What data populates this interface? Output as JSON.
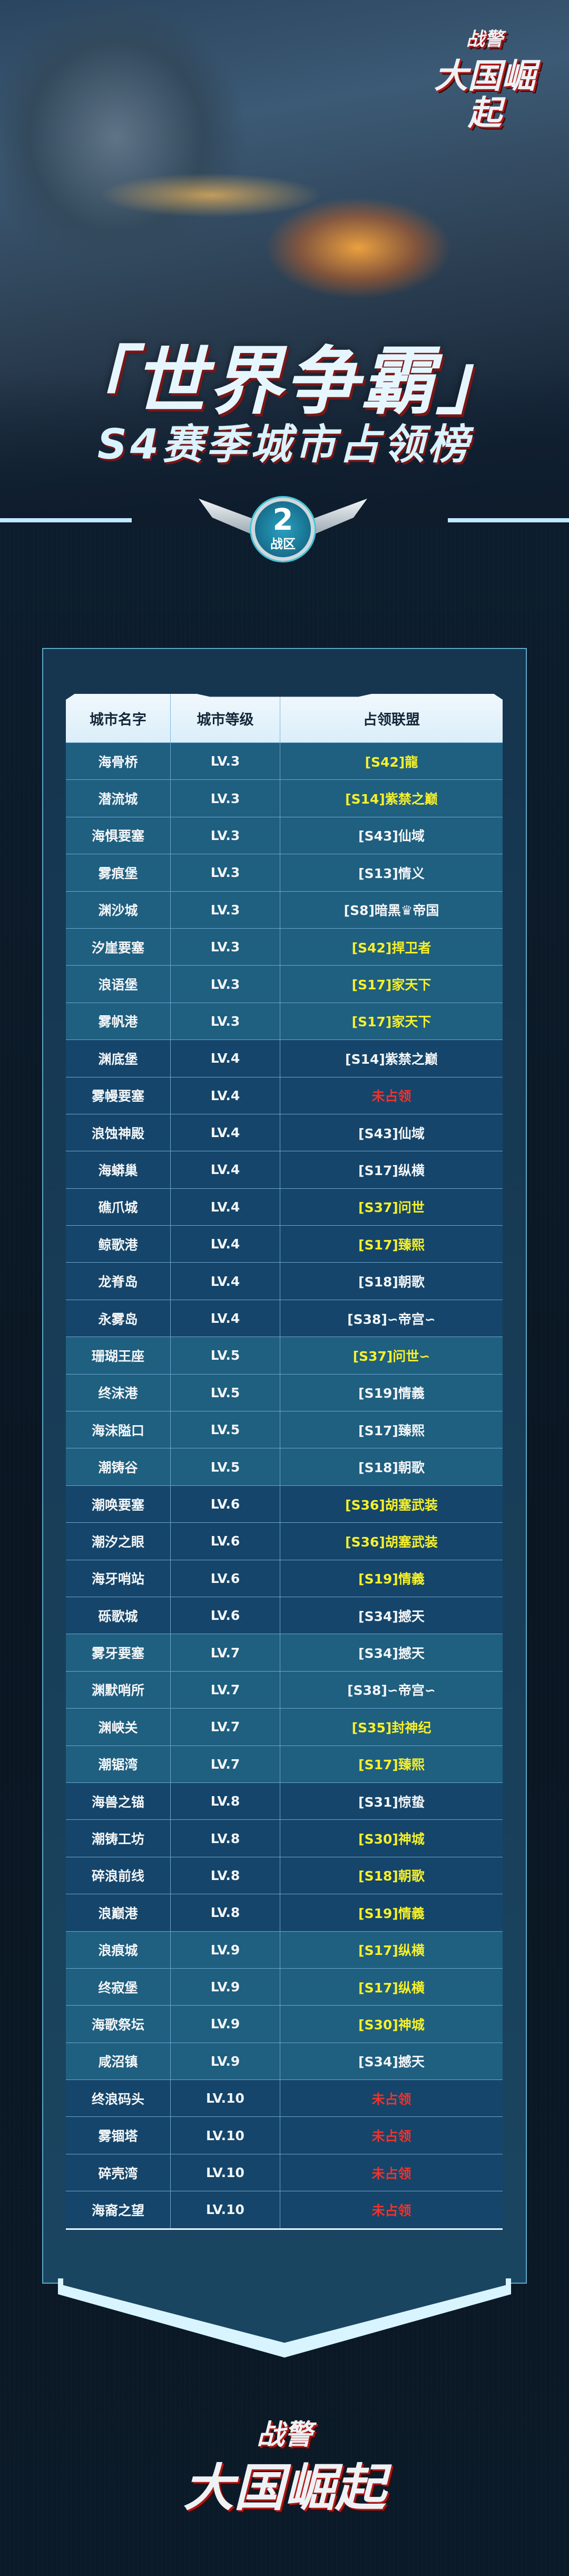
{
  "header": {
    "logo_line1": "战警",
    "logo_line2": "大国崛起",
    "title": "「世界争霸」",
    "subtitle": "S4赛季城市占领榜",
    "zone_number": "2",
    "zone_label": "战区"
  },
  "table": {
    "columns": [
      "城市名字",
      "城市等级",
      "占领联盟"
    ],
    "colors": {
      "w": "#f3f6f8",
      "y": "#f6f02a",
      "r": "#f0322c"
    },
    "rows": [
      {
        "city": "海骨桥",
        "level": "LV.3",
        "alliance": "[S42]龍",
        "color": "y"
      },
      {
        "city": "潜流城",
        "level": "LV.3",
        "alliance": "[S14]紫禁之巅",
        "color": "y"
      },
      {
        "city": "海惧要塞",
        "level": "LV.3",
        "alliance": "[S43]仙域",
        "color": "w"
      },
      {
        "city": "雾痕堡",
        "level": "LV.3",
        "alliance": "[S13]情义",
        "color": "w"
      },
      {
        "city": "渊沙城",
        "level": "LV.3",
        "alliance": "[S8]暗黑♛帝国",
        "color": "w"
      },
      {
        "city": "汐崖要塞",
        "level": "LV.3",
        "alliance": "[S42]捍卫者",
        "color": "y"
      },
      {
        "city": "浪语堡",
        "level": "LV.3",
        "alliance": "[S17]家天下",
        "color": "y"
      },
      {
        "city": "雾帆港",
        "level": "LV.3",
        "alliance": "[S17]家天下",
        "color": "y"
      },
      {
        "city": "渊底堡",
        "level": "LV.4",
        "alliance": "[S14]紫禁之巅",
        "color": "w"
      },
      {
        "city": "雾幔要塞",
        "level": "LV.4",
        "alliance": "未占领",
        "color": "r"
      },
      {
        "city": "浪蚀神殿",
        "level": "LV.4",
        "alliance": "[S43]仙域",
        "color": "w"
      },
      {
        "city": "海蟒巢",
        "level": "LV.4",
        "alliance": "[S17]纵横",
        "color": "w"
      },
      {
        "city": "礁爪城",
        "level": "LV.4",
        "alliance": "[S37]问世",
        "color": "y"
      },
      {
        "city": "鲸歌港",
        "level": "LV.4",
        "alliance": "[S17]臻熙",
        "color": "y"
      },
      {
        "city": "龙脊岛",
        "level": "LV.4",
        "alliance": "[S18]朝歌",
        "color": "w"
      },
      {
        "city": "永雾岛",
        "level": "LV.4",
        "alliance": "[S38]∽帝宫∽",
        "color": "w"
      },
      {
        "city": "珊瑚王座",
        "level": "LV.5",
        "alliance": "[S37]问世∽",
        "color": "y"
      },
      {
        "city": "终沫港",
        "level": "LV.5",
        "alliance": "[S19]情義",
        "color": "w"
      },
      {
        "city": "海沫隘口",
        "level": "LV.5",
        "alliance": "[S17]臻熙",
        "color": "w"
      },
      {
        "city": "潮铸谷",
        "level": "LV.5",
        "alliance": "[S18]朝歌",
        "color": "w"
      },
      {
        "city": "潮唤要塞",
        "level": "LV.6",
        "alliance": "[S36]胡塞武装",
        "color": "y"
      },
      {
        "city": "潮汐之眼",
        "level": "LV.6",
        "alliance": "[S36]胡塞武装",
        "color": "y"
      },
      {
        "city": "海牙哨站",
        "level": "LV.6",
        "alliance": "[S19]情義",
        "color": "y"
      },
      {
        "city": "砾歌城",
        "level": "LV.6",
        "alliance": "[S34]撼天",
        "color": "w"
      },
      {
        "city": "雾牙要塞",
        "level": "LV.7",
        "alliance": "[S34]撼天",
        "color": "w"
      },
      {
        "city": "渊默哨所",
        "level": "LV.7",
        "alliance": "[S38]∽帝宫∽",
        "color": "w"
      },
      {
        "city": "渊峡关",
        "level": "LV.7",
        "alliance": "[S35]封神纪",
        "color": "y"
      },
      {
        "city": "潮锯湾",
        "level": "LV.7",
        "alliance": "[S17]臻熙",
        "color": "y"
      },
      {
        "city": "海兽之锚",
        "level": "LV.8",
        "alliance": "[S31]惊蛰",
        "color": "w"
      },
      {
        "city": "潮铸工坊",
        "level": "LV.8",
        "alliance": "[S30]神城",
        "color": "y"
      },
      {
        "city": "碎浪前线",
        "level": "LV.8",
        "alliance": "[S18]朝歌",
        "color": "y"
      },
      {
        "city": "浪巅港",
        "level": "LV.8",
        "alliance": "[S19]情義",
        "color": "y"
      },
      {
        "city": "浪痕城",
        "level": "LV.9",
        "alliance": "[S17]纵横",
        "color": "y"
      },
      {
        "city": "终寂堡",
        "level": "LV.9",
        "alliance": "[S17]纵横",
        "color": "y"
      },
      {
        "city": "海歌祭坛",
        "level": "LV.9",
        "alliance": "[S30]神城",
        "color": "y"
      },
      {
        "city": "咸沼镇",
        "level": "LV.9",
        "alliance": "[S34]撼天",
        "color": "w"
      },
      {
        "city": "终浪码头",
        "level": "LV.10",
        "alliance": "未占领",
        "color": "r"
      },
      {
        "city": "雾锢塔",
        "level": "LV.10",
        "alliance": "未占领",
        "color": "r"
      },
      {
        "city": "碎壳湾",
        "level": "LV.10",
        "alliance": "未占领",
        "color": "r"
      },
      {
        "city": "海裔之望",
        "level": "LV.10",
        "alliance": "未占领",
        "color": "r"
      }
    ]
  },
  "footer": {
    "logo_line1": "战警",
    "logo_line2": "大国崛起"
  }
}
